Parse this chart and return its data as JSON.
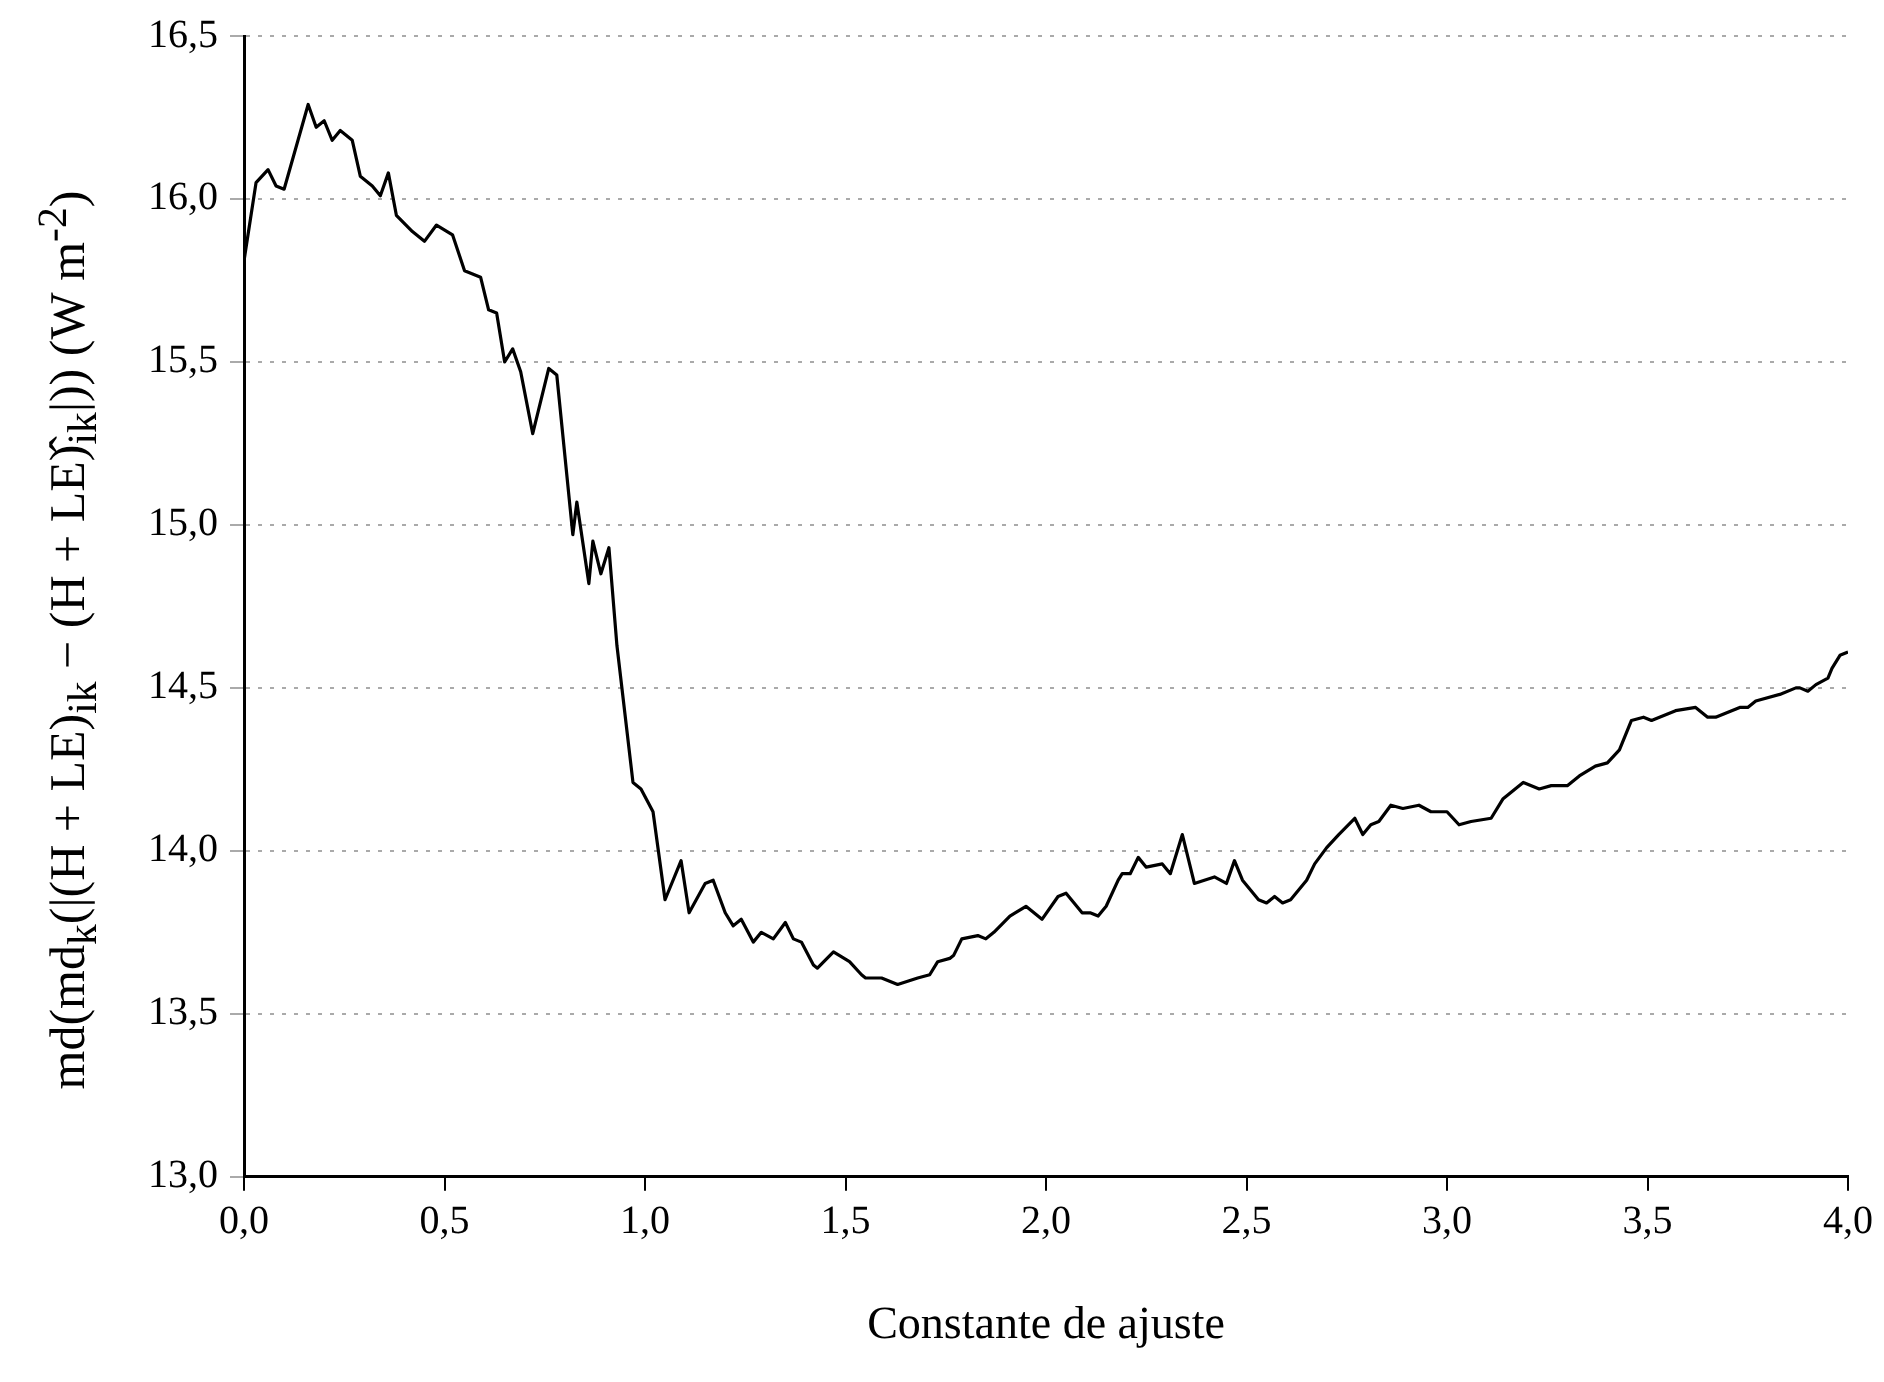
{
  "chart_data": {
    "type": "line",
    "xlabel": "Constante de ajuste",
    "ylabel": "md(md$_{k}$(|(H + LE)$_{ik}$ − (H + LE)̂$_{ik}$|))  (W m$^{-2}$)",
    "x": [
      0,
      0.03,
      0.06,
      0.08,
      0.1,
      0.16,
      0.18,
      0.2,
      0.22,
      0.24,
      0.26,
      0.27,
      0.29,
      0.32,
      0.34,
      0.36,
      0.38,
      0.42,
      0.45,
      0.48,
      0.52,
      0.55,
      0.59,
      0.61,
      0.63,
      0.65,
      0.67,
      0.69,
      0.72,
      0.76,
      0.78,
      0.82,
      0.83,
      0.86,
      0.87,
      0.89,
      0.91,
      0.93,
      0.97,
      0.99,
      1.02,
      1.05,
      1.09,
      1.11,
      1.15,
      1.17,
      1.2,
      1.22,
      1.24,
      1.27,
      1.29,
      1.32,
      1.35,
      1.37,
      1.39,
      1.42,
      1.43,
      1.47,
      1.51,
      1.54,
      1.55,
      1.59,
      1.63,
      1.68,
      1.71,
      1.73,
      1.76,
      1.77,
      1.79,
      1.83,
      1.85,
      1.87,
      1.91,
      1.95,
      1.99,
      2.03,
      2.05,
      2.09,
      2.11,
      2.13,
      2.15,
      2.18,
      2.19,
      2.21,
      2.23,
      2.25,
      2.29,
      2.31,
      2.34,
      2.37,
      2.42,
      2.45,
      2.47,
      2.49,
      2.53,
      2.55,
      2.57,
      2.59,
      2.61,
      2.65,
      2.67,
      2.7,
      2.73,
      2.77,
      2.79,
      2.81,
      2.83,
      2.86,
      2.89,
      2.93,
      2.96,
      3,
      3.03,
      3.06,
      3.11,
      3.14,
      3.16,
      3.19,
      3.23,
      3.26,
      3.3,
      3.33,
      3.37,
      3.4,
      3.43,
      3.46,
      3.49,
      3.51,
      3.53,
      3.57,
      3.62,
      3.65,
      3.67,
      3.71,
      3.73,
      3.75,
      3.77,
      3.83,
      3.87,
      3.88,
      3.9,
      3.92,
      3.95,
      3.96,
      3.98,
      4
    ],
    "values": [
      15.81,
      16.05,
      16.09,
      16.04,
      16.03,
      16.29,
      16.22,
      16.24,
      16.18,
      16.21,
      16.19,
      16.18,
      16.07,
      16.04,
      16.01,
      16.08,
      15.95,
      15.9,
      15.87,
      15.92,
      15.89,
      15.78,
      15.76,
      15.66,
      15.65,
      15.5,
      15.54,
      15.47,
      15.28,
      15.48,
      15.46,
      14.97,
      15.07,
      14.82,
      14.95,
      14.85,
      14.93,
      14.63,
      14.21,
      14.19,
      14.12,
      13.85,
      13.97,
      13.81,
      13.9,
      13.91,
      13.81,
      13.77,
      13.79,
      13.72,
      13.75,
      13.73,
      13.78,
      13.73,
      13.72,
      13.65,
      13.64,
      13.69,
      13.66,
      13.62,
      13.61,
      13.61,
      13.59,
      13.61,
      13.62,
      13.66,
      13.67,
      13.68,
      13.73,
      13.74,
      13.73,
      13.75,
      13.8,
      13.83,
      13.79,
      13.86,
      13.87,
      13.81,
      13.81,
      13.8,
      13.83,
      13.91,
      13.93,
      13.93,
      13.98,
      13.95,
      13.96,
      13.93,
      14.05,
      13.9,
      13.92,
      13.9,
      13.97,
      13.91,
      13.85,
      13.84,
      13.86,
      13.84,
      13.85,
      13.91,
      13.96,
      14.01,
      14.05,
      14.1,
      14.05,
      14.08,
      14.09,
      14.14,
      14.13,
      14.14,
      14.12,
      14.12,
      14.08,
      14.09,
      14.1,
      14.16,
      14.18,
      14.21,
      14.19,
      14.2,
      14.2,
      14.23,
      14.26,
      14.27,
      14.31,
      14.4,
      14.41,
      14.4,
      14.41,
      14.43,
      14.44,
      14.41,
      14.41,
      14.43,
      14.44,
      14.44,
      14.46,
      14.48,
      14.5,
      14.5,
      14.49,
      14.51,
      14.53,
      14.56,
      14.6,
      14.61
    ],
    "color": "#000000",
    "xlim": [
      0,
      4
    ],
    "xticks": [
      {
        "value": 0,
        "label": "0,0"
      },
      {
        "value": 0.5,
        "label": "0,5"
      },
      {
        "value": 1,
        "label": "1,0"
      },
      {
        "value": 1.5,
        "label": "1,5"
      },
      {
        "value": 2,
        "label": "2,0"
      },
      {
        "value": 2.5,
        "label": "2,5"
      },
      {
        "value": 3,
        "label": "3,0"
      },
      {
        "value": 3.5,
        "label": "3,5"
      },
      {
        "value": 4,
        "label": "4,0"
      }
    ],
    "ylim": [
      13,
      16.5
    ],
    "yticks": [
      {
        "value": 13,
        "label": "13,0"
      },
      {
        "value": 13.5,
        "label": "13,5"
      },
      {
        "value": 14,
        "label": "14,0"
      },
      {
        "value": 14.5,
        "label": "14,5"
      },
      {
        "value": 15,
        "label": "15,0"
      },
      {
        "value": 15.5,
        "label": "15,5"
      },
      {
        "value": 16,
        "label": "16,0"
      },
      {
        "value": 16.5,
        "label": "16,5"
      }
    ],
    "grid": "y",
    "line_style": "solid"
  }
}
